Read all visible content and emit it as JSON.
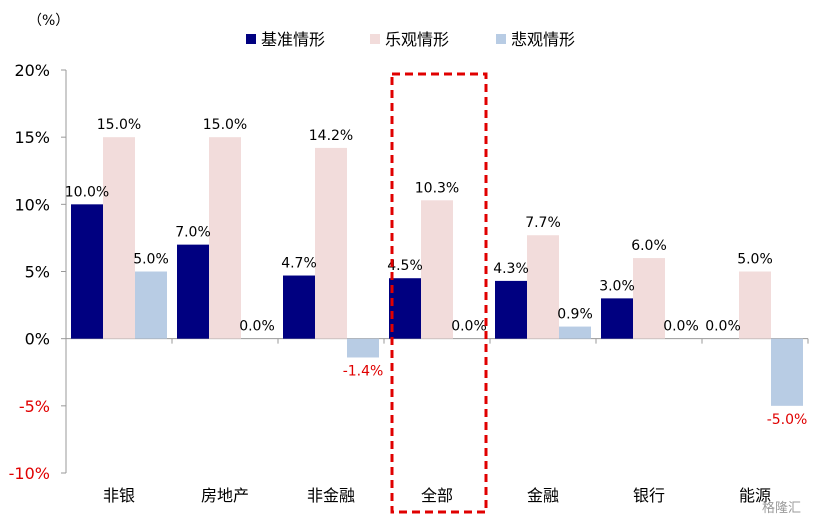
{
  "chart_data": {
    "type": "bar",
    "unit_label": "（%）",
    "categories": [
      "非银",
      "房地产",
      "非金融",
      "全部",
      "金融",
      "银行",
      "能源"
    ],
    "series": [
      {
        "name": "基准情形",
        "color": "#000080",
        "values": [
          10.0,
          7.0,
          4.7,
          4.5,
          4.3,
          3.0,
          0.0
        ]
      },
      {
        "name": "乐观情形",
        "color": "#f2dcdb",
        "values": [
          15.0,
          15.0,
          14.2,
          10.3,
          7.7,
          6.0,
          5.0
        ]
      },
      {
        "name": "悲观情形",
        "color": "#b8cce4",
        "values": [
          5.0,
          0.0,
          -1.4,
          0.0,
          0.9,
          0.0,
          -5.0
        ]
      }
    ],
    "ylim": [
      -10,
      20
    ],
    "yticks": [
      20,
      15,
      10,
      5,
      0,
      -5,
      -10
    ],
    "ytick_labels": [
      "20%",
      "15%",
      "10%",
      "5%",
      "0%",
      "-5%",
      "-10%"
    ],
    "negative_label_color": "#e00000",
    "highlight": {
      "category": "全部",
      "style": "dashed-box",
      "color": "#e00000"
    },
    "legend_position": "top",
    "grid": false,
    "watermark": "格隆汇"
  }
}
